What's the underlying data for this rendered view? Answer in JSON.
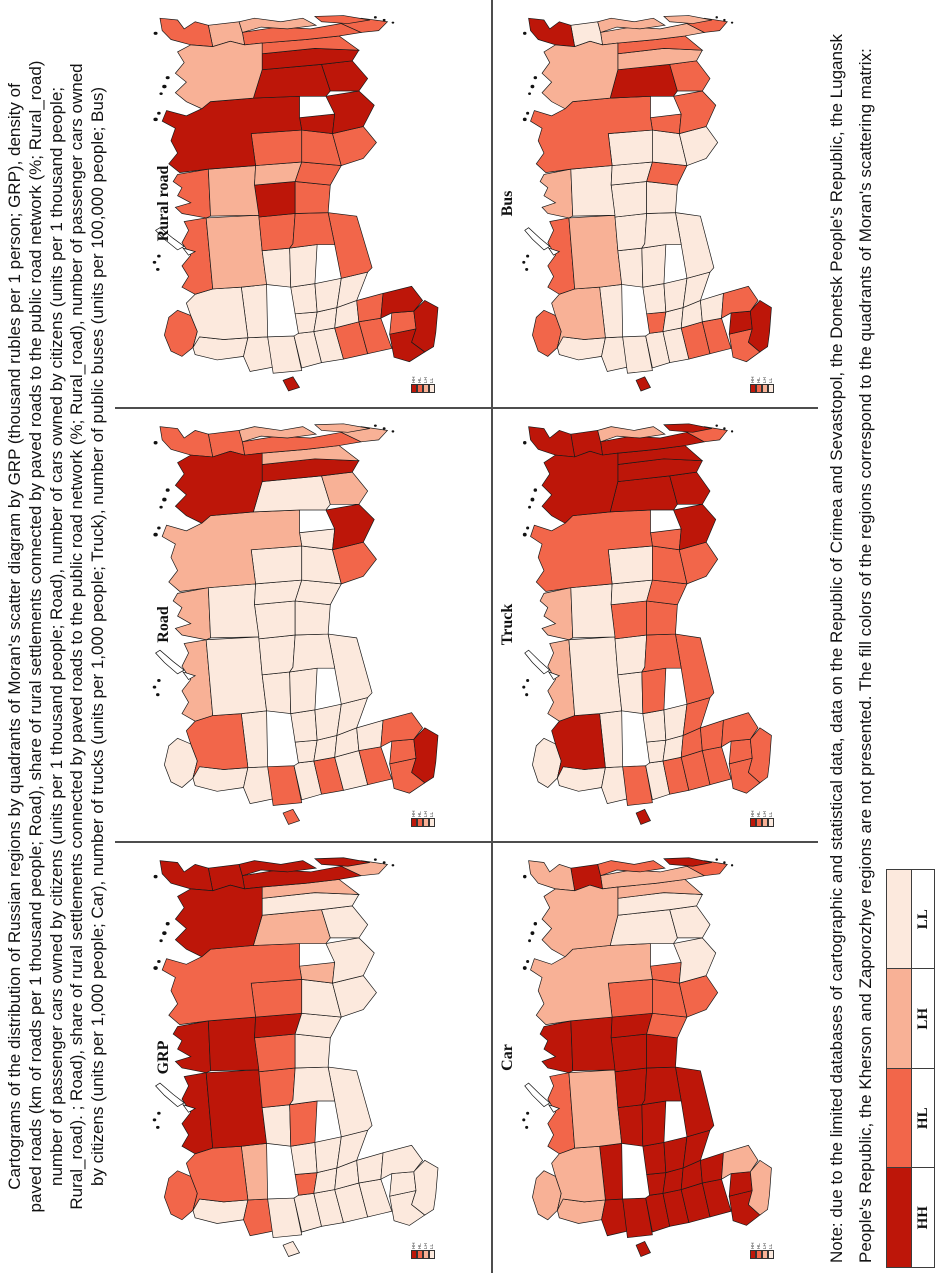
{
  "figure": {
    "caption_lines": [
      "Cartograms of the distribution of Russian regions by quadrants of Moran's scatter diagram by GRP (thousand rubles per 1 person; GRP), density of",
      "paved roads (km of roads per 1 thousand people; Road), share of rural settlements connected by paved roads to the public road network (%; Rural_road)",
      "number of passenger cars owned by citizens (units per 1 thousand people; Road), number of cars owned by citizens (units per 1 thousand people;",
      "Rural_road). ; Road), share of rural settlements connected by paved roads to the public road network (%; Rural_road), number of passenger cars owned",
      "by citizens (units per 1,000 people; Car), number of trucks (units per 1,000 people; Truck), number of public buses (units per 100,000 people; Bus)"
    ],
    "note_lines": [
      "Note: due to the limited databases of cartographic and statistical data, data on the Republic of Crimea and Sevastopol, the Donetsk People's Republic, the Lugansk",
      "People's Republic, the Kherson and Zaporozhye regions are not presented. The fill colors of the regions correspond to the quadrants of Moran's scattering matrix:"
    ]
  },
  "palette": {
    "HH": "#bd1609",
    "HL": "#f2664a",
    "LH": "#f8b196",
    "LL": "#fce9dd"
  },
  "legend": {
    "items": [
      {
        "code": "HH"
      },
      {
        "code": "HL"
      },
      {
        "code": "LH"
      },
      {
        "code": "LL"
      }
    ]
  },
  "maps": [
    {
      "id": "grp",
      "label": "GRP",
      "regions": {
        "kaliningrad": "LL",
        "murmansk": "HL",
        "karelia": "LL",
        "leningrad": "HL",
        "pskov_novgorod": "LL",
        "tver": "LL",
        "moscow": "HL",
        "smolensk_bryansk": "LL",
        "kursk_voronezh": "LL",
        "rostov": "LL",
        "krasnodar": "LL",
        "stavropol": "LL",
        "caucasus": "LL",
        "ryazan_tula": "LL",
        "tambov_penza": "LL",
        "volgograd": "LL",
        "astrakhan": "LL",
        "vladimir_ivanovo": "LL",
        "nizhny_novgorod": "LL",
        "samara_saratov": "LL",
        "orenburg": "LL",
        "vologda": "LH",
        "arkhangelsk": "HL",
        "nenets": "HH",
        "komi": "HH",
        "kirov": "LL",
        "tatarstan": "HL",
        "perm": "HL",
        "bashkortostan": "LL",
        "sverdlovsk": "HL",
        "chelyabinsk": "LL",
        "yamal": "HH",
        "khanty_mansi": "HH",
        "tyumen": "HH",
        "omsk": "LL",
        "tomsk": "HL",
        "novosibirsk": "LL",
        "kemerovo": "LH",
        "altai": "LL",
        "krasnoyarsk": "HL",
        "khakassia_tyva": "LL",
        "irkutsk": "LH",
        "buryatia": "LL",
        "zabaikalsky": "LL",
        "yakutia": "HH",
        "amur": "LH",
        "khabarovsk": "HH",
        "primorsky": "LH",
        "magadan": "HH",
        "chukotka": "HH",
        "kamchatka": "HH",
        "sakhalin": "HH"
      }
    },
    {
      "id": "road",
      "label": "Road",
      "regions": {
        "kaliningrad": "HL",
        "murmansk": "LL",
        "karelia": "LL",
        "leningrad": "LL",
        "pskov_novgorod": "HL",
        "tver": "LL",
        "moscow": "LL",
        "smolensk_bryansk": "HL",
        "kursk_voronezh": "LL",
        "rostov": "HL",
        "krasnodar": "HL",
        "stavropol": "HL",
        "caucasus": "HH",
        "ryazan_tula": "LL",
        "tambov_penza": "LL",
        "volgograd": "LL",
        "astrakhan": "HL",
        "vladimir_ivanovo": "LL",
        "nizhny_novgorod": "LL",
        "samara_saratov": "LL",
        "orenburg": "LL",
        "vologda": "LL",
        "arkhangelsk": "HL",
        "nenets": "LH",
        "komi": "LL",
        "kirov": "LL",
        "tatarstan": "LL",
        "perm": "LL",
        "bashkortostan": "LL",
        "sverdlovsk": "LL",
        "chelyabinsk": "LL",
        "yamal": "LH",
        "khanty_mansi": "LL",
        "tyumen": "LL",
        "omsk": "LL",
        "tomsk": "LL",
        "novosibirsk": "LL",
        "kemerovo": "LL",
        "altai": "HL",
        "krasnoyarsk": "LH",
        "khakassia_tyva": "HH",
        "irkutsk": "LL",
        "buryatia": "LH",
        "zabaikalsky": "HH",
        "yakutia": "HH",
        "amur": "LH",
        "khabarovsk": "HL",
        "primorsky": "LH",
        "magadan": "HL",
        "chukotka": "HL",
        "kamchatka": "LH",
        "sakhalin": "LH"
      }
    },
    {
      "id": "rural_road",
      "label": "Rural road",
      "regions": {
        "kaliningrad": "HH",
        "murmansk": "HL",
        "karelia": "LL",
        "leningrad": "LL",
        "pskov_novgorod": "LL",
        "tver": "LL",
        "moscow": "LL",
        "smolensk_bryansk": "LL",
        "kursk_voronezh": "HL",
        "rostov": "HL",
        "krasnodar": "HH",
        "stavropol": "HL",
        "caucasus": "HH",
        "ryazan_tula": "LL",
        "tambov_penza": "LL",
        "volgograd": "HL",
        "astrakhan": "HH",
        "vladimir_ivanovo": "LL",
        "nizhny_novgorod": "LL",
        "samara_saratov": "LL",
        "orenburg": "HL",
        "vologda": "LL",
        "arkhangelsk": "LL",
        "nenets": "HL",
        "komi": "LH",
        "kirov": "LL",
        "tatarstan": "LL",
        "perm": "HL",
        "bashkortostan": "HL",
        "sverdlovsk": "HH",
        "chelyabinsk": "HL",
        "yamal": "HL",
        "khanty_mansi": "LH",
        "tyumen": "LH",
        "omsk": "HL",
        "tomsk": "HL",
        "novosibirsk": "HL",
        "kemerovo": "HH",
        "altai": "HL",
        "krasnoyarsk": "HH",
        "khakassia_tyva": "HH",
        "irkutsk": "HH",
        "buryatia": "HH",
        "zabaikalsky": "HH",
        "yakutia": "LH",
        "amur": "HL",
        "khabarovsk": "HL",
        "primorsky": "HL",
        "magadan": "LH",
        "chukotka": "HL",
        "kamchatka": "LH",
        "sakhalin": "HL"
      }
    },
    {
      "id": "car",
      "label": "Car",
      "regions": {
        "kaliningrad": "HH",
        "murmansk": "LH",
        "karelia": "LH",
        "leningrad": "HH",
        "pskov_novgorod": "HH",
        "tver": "HH",
        "moscow": "HH",
        "smolensk_bryansk": "HH",
        "kursk_voronezh": "HH",
        "rostov": "HH",
        "krasnodar": "HH",
        "stavropol": "HH",
        "caucasus": "LH",
        "ryazan_tula": "HH",
        "tambov_penza": "HH",
        "volgograd": "HH",
        "astrakhan": "LH",
        "vladimir_ivanovo": "HH",
        "nizhny_novgorod": "HH",
        "samara_saratov": "HH",
        "orenburg": "HH",
        "vologda": "HH",
        "arkhangelsk": "LH",
        "nenets": "HL",
        "komi": "LH",
        "kirov": "HH",
        "tatarstan": "HH",
        "perm": "HH",
        "bashkortostan": "HH",
        "sverdlovsk": "HH",
        "chelyabinsk": "HH",
        "yamal": "HH",
        "khanty_mansi": "HH",
        "tyumen": "HH",
        "omsk": "HL",
        "tomsk": "HL",
        "novosibirsk": "HL",
        "kemerovo": "HL",
        "altai": "HL",
        "krasnoyarsk": "LH",
        "khakassia_tyva": "LL",
        "irkutsk": "LL",
        "buryatia": "LL",
        "zabaikalsky": "LL",
        "yakutia": "LH",
        "amur": "LH",
        "khabarovsk": "LH",
        "primorsky": "HL",
        "magadan": "HH",
        "chukotka": "LH",
        "kamchatka": "HL",
        "sakhalin": "HH"
      }
    },
    {
      "id": "truck",
      "label": "Truck",
      "regions": {
        "kaliningrad": "HH",
        "murmansk": "LL",
        "karelia": "LL",
        "leningrad": "LL",
        "pskov_novgorod": "HL",
        "tver": "LL",
        "moscow": "LL",
        "smolensk_bryansk": "HL",
        "kursk_voronezh": "HL",
        "rostov": "HL",
        "krasnodar": "HL",
        "stavropol": "HL",
        "caucasus": "HL",
        "ryazan_tula": "LL",
        "tambov_penza": "HL",
        "volgograd": "HL",
        "astrakhan": "HL",
        "vladimir_ivanovo": "LL",
        "nizhny_novgorod": "LL",
        "samara_saratov": "HL",
        "orenburg": "HL",
        "vologda": "LL",
        "arkhangelsk": "HH",
        "nenets": "LH",
        "komi": "LL",
        "kirov": "LL",
        "tatarstan": "HL",
        "perm": "LL",
        "bashkortostan": "HL",
        "sverdlovsk": "HL",
        "chelyabinsk": "HL",
        "yamal": "LH",
        "khanty_mansi": "LL",
        "tyumen": "LL",
        "omsk": "HL",
        "tomsk": "LL",
        "novosibirsk": "HL",
        "kemerovo": "HL",
        "altai": "HL",
        "krasnoyarsk": "HL",
        "khakassia_tyva": "HH",
        "irkutsk": "HH",
        "buryatia": "HH",
        "zabaikalsky": "HH",
        "yakutia": "HH",
        "amur": "HH",
        "khabarovsk": "HH",
        "primorsky": "HL",
        "magadan": "HH",
        "chukotka": "HH",
        "kamchatka": "LH",
        "sakhalin": "HH"
      }
    },
    {
      "id": "bus",
      "label": "Bus",
      "regions": {
        "kaliningrad": "HH",
        "murmansk": "HL",
        "karelia": "LL",
        "leningrad": "LL",
        "pskov_novgorod": "LL",
        "tver": "LL",
        "moscow": "HL",
        "smolensk_bryansk": "LL",
        "kursk_voronezh": "HL",
        "rostov": "HL",
        "krasnodar": "HL",
        "stavropol": "HH",
        "caucasus": "HH",
        "ryazan_tula": "LL",
        "tambov_penza": "LL",
        "volgograd": "LL",
        "astrakhan": "HL",
        "vladimir_ivanovo": "LL",
        "nizhny_novgorod": "LL",
        "samara_saratov": "LL",
        "orenburg": "LL",
        "vologda": "LL",
        "arkhangelsk": "LH",
        "nenets": "HL",
        "komi": "LH",
        "kirov": "LL",
        "tatarstan": "LL",
        "perm": "LL",
        "bashkortostan": "LL",
        "sverdlovsk": "LL",
        "chelyabinsk": "LL",
        "yamal": "LH",
        "khanty_mansi": "LL",
        "tyumen": "LL",
        "omsk": "HL",
        "tomsk": "LL",
        "novosibirsk": "LL",
        "kemerovo": "HL",
        "altai": "LL",
        "krasnoyarsk": "HL",
        "khakassia_tyva": "HL",
        "irkutsk": "HH",
        "buryatia": "HL",
        "zabaikalsky": "LH",
        "yakutia": "LH",
        "amur": "HL",
        "khabarovsk": "LH",
        "primorsky": "HL",
        "magadan": "LL",
        "chukotka": "HH",
        "kamchatka": "LH",
        "sakhalin": "LH"
      }
    }
  ],
  "mini_legend_labels": [
    "HH",
    "HL",
    "LH",
    "LL"
  ]
}
